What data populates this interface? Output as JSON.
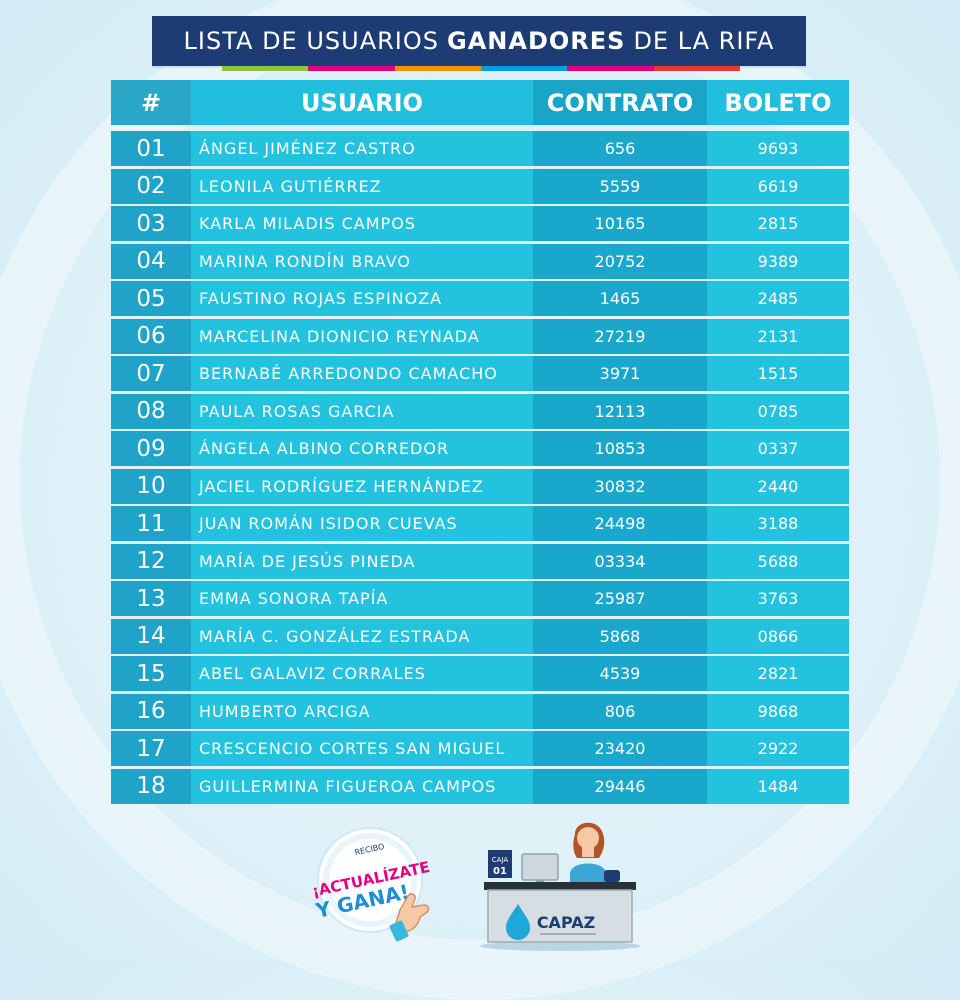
{
  "title": {
    "prefix": "LISTA DE USUARIOS",
    "bold": "GANADORES",
    "suffix": "DE LA RIFA"
  },
  "colors": {
    "title_bg": "#1c3c73",
    "stripe": [
      "#8cc63f",
      "#e6007e",
      "#f29100",
      "#00a0e3",
      "#e6007e",
      "#e53935"
    ]
  },
  "table": {
    "headers": [
      "#",
      "USUARIO",
      "CONTRATO",
      "BOLETO"
    ],
    "rows": [
      {
        "num": "01",
        "user": "ÁNGEL JIMÉNEZ CASTRO",
        "contract": "656",
        "ticket": "9693"
      },
      {
        "num": "02",
        "user": "LEONILA  GUTIÉRREZ",
        "contract": "5559",
        "ticket": "6619"
      },
      {
        "num": "03",
        "user": "KARLA MILADIS CAMPOS",
        "contract": "10165",
        "ticket": "2815"
      },
      {
        "num": "04",
        "user": "MARINA RONDÍN BRAVO",
        "contract": "20752",
        "ticket": "9389"
      },
      {
        "num": "05",
        "user": "FAUSTINO ROJAS ESPINOZA",
        "contract": "1465",
        "ticket": "2485"
      },
      {
        "num": "06",
        "user": "MARCELINA DIONICIO REYNADA",
        "contract": "27219",
        "ticket": "2131"
      },
      {
        "num": "07",
        "user": "BERNABÉ ARREDONDO CAMACHO",
        "contract": "3971",
        "ticket": "1515"
      },
      {
        "num": "08",
        "user": "PAULA ROSAS GARCIA",
        "contract": "12113",
        "ticket": "0785"
      },
      {
        "num": "09",
        "user": "ÁNGELA ALBINO CORREDOR",
        "contract": "10853",
        "ticket": "0337"
      },
      {
        "num": "10",
        "user": "JACIEL RODRÍGUEZ HERNÁNDEZ",
        "contract": "30832",
        "ticket": "2440"
      },
      {
        "num": "11",
        "user": "JUAN ROMÁN ISIDOR CUEVAS",
        "contract": "24498",
        "ticket": "3188"
      },
      {
        "num": "12",
        "user": "MARÍA DE JESÚS PINEDA",
        "contract": "03334",
        "ticket": "5688"
      },
      {
        "num": "13",
        "user": "EMMA SONORA TAPÍA",
        "contract": "25987",
        "ticket": "3763"
      },
      {
        "num": "14",
        "user": "MARÍA C. GONZÁLEZ ESTRADA",
        "contract": "5868",
        "ticket": "0866"
      },
      {
        "num": "15",
        "user": "ABEL GALAVIZ CORRALES",
        "contract": "4539",
        "ticket": "2821"
      },
      {
        "num": "16",
        "user": "HUMBERTO ARCIGA",
        "contract": "806",
        "ticket": "9868"
      },
      {
        "num": "17",
        "user": "CRESCENCIO CORTES SAN MIGUEL",
        "contract": "23420",
        "ticket": "2922"
      },
      {
        "num": "18",
        "user": "GUILLERMINA FIGUEROA CAMPOS",
        "contract": "29446",
        "ticket": "1484"
      }
    ]
  },
  "promo_logo": {
    "small": "RECIBO",
    "line1": "¡ACTUALÍZATE",
    "line2": "Y GANA!",
    "icon": "pointing-hand-icon"
  },
  "desk_logo": {
    "caja": "CAJA",
    "caja_num": "01",
    "brand": "CAPAZ",
    "icon": "water-drop-icon"
  }
}
